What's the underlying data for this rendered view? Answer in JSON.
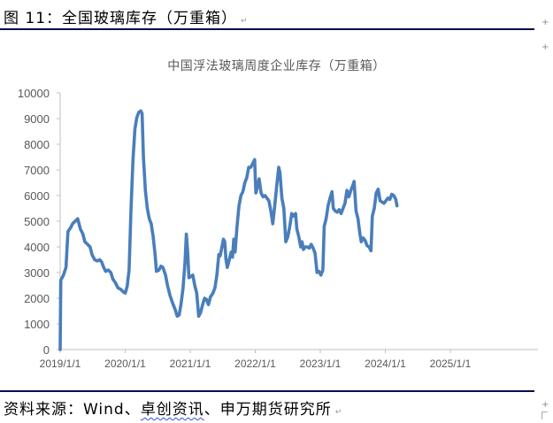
{
  "figure": {
    "title": "图 11：全国玻璃库存（万重箱）",
    "para_mark": "↵",
    "source_prefix": "资料来源：Wind、",
    "source_underlined": "卓创资讯",
    "source_suffix": "、申万期货研究所",
    "colors": {
      "rule": "#0b0b4f",
      "line": "#4a7ebb",
      "axis_text": "#595959",
      "axis": "#bfbfbf"
    }
  },
  "chart_data": {
    "type": "line",
    "title": "中国浮法玻璃周度企业库存（万重箱）",
    "xlabel": "",
    "ylabel": "",
    "ylim": [
      0,
      10000
    ],
    "yticks": [
      "0",
      "1000",
      "2000",
      "3000",
      "4000",
      "5000",
      "6000",
      "7000",
      "8000",
      "9000",
      "10000"
    ],
    "xticks": [
      "2019/1/1",
      "2020/1/1",
      "2021/1/1",
      "2022/1/1",
      "2023/1/1",
      "2024/1/1",
      "2025/1/1"
    ],
    "grid": false,
    "legend": "none",
    "series": [
      {
        "name": "中国浮法玻璃周度企业库存",
        "x_unit": "years since 2019/1/1",
        "points": [
          [
            0.0,
            0
          ],
          [
            0.01,
            2700
          ],
          [
            0.05,
            2900
          ],
          [
            0.09,
            3200
          ],
          [
            0.12,
            4600
          ],
          [
            0.16,
            4750
          ],
          [
            0.19,
            4900
          ],
          [
            0.23,
            5000
          ],
          [
            0.27,
            5100
          ],
          [
            0.31,
            4700
          ],
          [
            0.35,
            4500
          ],
          [
            0.38,
            4200
          ],
          [
            0.42,
            4100
          ],
          [
            0.46,
            4000
          ],
          [
            0.49,
            3700
          ],
          [
            0.53,
            3500
          ],
          [
            0.57,
            3450
          ],
          [
            0.61,
            3500
          ],
          [
            0.64,
            3400
          ],
          [
            0.67,
            3200
          ],
          [
            0.7,
            3050
          ],
          [
            0.74,
            3100
          ],
          [
            0.78,
            3000
          ],
          [
            0.81,
            2750
          ],
          [
            0.85,
            2600
          ],
          [
            0.89,
            2400
          ],
          [
            0.93,
            2350
          ],
          [
            0.97,
            2250
          ],
          [
            1.0,
            2200
          ],
          [
            1.03,
            2450
          ],
          [
            1.06,
            3100
          ],
          [
            1.09,
            5500
          ],
          [
            1.12,
            7400
          ],
          [
            1.15,
            8600
          ],
          [
            1.18,
            9050
          ],
          [
            1.21,
            9250
          ],
          [
            1.24,
            9300
          ],
          [
            1.26,
            9200
          ],
          [
            1.28,
            7500
          ],
          [
            1.31,
            6200
          ],
          [
            1.34,
            5500
          ],
          [
            1.37,
            5100
          ],
          [
            1.4,
            4900
          ],
          [
            1.43,
            4400
          ],
          [
            1.46,
            3700
          ],
          [
            1.48,
            3050
          ],
          [
            1.52,
            3100
          ],
          [
            1.55,
            3250
          ],
          [
            1.58,
            3200
          ],
          [
            1.62,
            2900
          ],
          [
            1.65,
            2500
          ],
          [
            1.69,
            2100
          ],
          [
            1.73,
            1800
          ],
          [
            1.77,
            1550
          ],
          [
            1.8,
            1300
          ],
          [
            1.83,
            1350
          ],
          [
            1.86,
            1800
          ],
          [
            1.89,
            2400
          ],
          [
            1.92,
            3400
          ],
          [
            1.94,
            4500
          ],
          [
            1.96,
            3800
          ],
          [
            1.98,
            2800
          ],
          [
            2.01,
            2850
          ],
          [
            2.04,
            2900
          ],
          [
            2.07,
            2500
          ],
          [
            2.1,
            2200
          ],
          [
            2.13,
            1300
          ],
          [
            2.16,
            1450
          ],
          [
            2.19,
            1750
          ],
          [
            2.22,
            2000
          ],
          [
            2.25,
            1950
          ],
          [
            2.28,
            1750
          ],
          [
            2.31,
            2050
          ],
          [
            2.35,
            2200
          ],
          [
            2.38,
            2400
          ],
          [
            2.41,
            2900
          ],
          [
            2.44,
            3700
          ],
          [
            2.46,
            3650
          ],
          [
            2.48,
            3900
          ],
          [
            2.51,
            4300
          ],
          [
            2.53,
            4200
          ],
          [
            2.55,
            3500
          ],
          [
            2.57,
            3200
          ],
          [
            2.6,
            3500
          ],
          [
            2.63,
            3800
          ],
          [
            2.65,
            3600
          ],
          [
            2.67,
            4300
          ],
          [
            2.69,
            3800
          ],
          [
            2.72,
            4800
          ],
          [
            2.75,
            5600
          ],
          [
            2.78,
            6000
          ],
          [
            2.81,
            6150
          ],
          [
            2.84,
            6500
          ],
          [
            2.87,
            6700
          ],
          [
            2.9,
            7100
          ],
          [
            2.93,
            7100
          ],
          [
            2.96,
            7250
          ],
          [
            2.99,
            7400
          ],
          [
            3.01,
            6100
          ],
          [
            3.03,
            6300
          ],
          [
            3.06,
            6650
          ],
          [
            3.09,
            6100
          ],
          [
            3.12,
            5950
          ],
          [
            3.15,
            6000
          ],
          [
            3.18,
            5900
          ],
          [
            3.21,
            5800
          ],
          [
            3.24,
            5400
          ],
          [
            3.27,
            4900
          ],
          [
            3.3,
            5600
          ],
          [
            3.33,
            6400
          ],
          [
            3.36,
            7100
          ],
          [
            3.38,
            6900
          ],
          [
            3.41,
            5900
          ],
          [
            3.44,
            5500
          ],
          [
            3.47,
            4200
          ],
          [
            3.5,
            4400
          ],
          [
            3.53,
            4800
          ],
          [
            3.56,
            5300
          ],
          [
            3.59,
            5200
          ],
          [
            3.62,
            5300
          ],
          [
            3.64,
            4700
          ],
          [
            3.67,
            4400
          ],
          [
            3.7,
            4000
          ],
          [
            3.72,
            4200
          ],
          [
            3.74,
            3900
          ],
          [
            3.77,
            4000
          ],
          [
            3.8,
            4000
          ],
          [
            3.83,
            3950
          ],
          [
            3.86,
            4100
          ],
          [
            3.89,
            3950
          ],
          [
            3.92,
            3750
          ],
          [
            3.95,
            3000
          ],
          [
            3.98,
            3050
          ],
          [
            4.01,
            2900
          ],
          [
            4.04,
            3100
          ],
          [
            4.06,
            4800
          ],
          [
            4.09,
            5100
          ],
          [
            4.12,
            5600
          ],
          [
            4.15,
            5900
          ],
          [
            4.18,
            6150
          ],
          [
            4.2,
            5500
          ],
          [
            4.23,
            5400
          ],
          [
            4.26,
            5350
          ],
          [
            4.29,
            5450
          ],
          [
            4.32,
            5300
          ],
          [
            4.35,
            5500
          ],
          [
            4.38,
            5700
          ],
          [
            4.41,
            6200
          ],
          [
            4.44,
            5950
          ],
          [
            4.47,
            6200
          ],
          [
            4.5,
            6400
          ],
          [
            4.52,
            6550
          ],
          [
            4.55,
            5400
          ],
          [
            4.58,
            5100
          ],
          [
            4.61,
            4500
          ],
          [
            4.63,
            4200
          ],
          [
            4.66,
            4350
          ],
          [
            4.69,
            4250
          ],
          [
            4.72,
            4050
          ],
          [
            4.75,
            4000
          ],
          [
            4.78,
            3850
          ],
          [
            4.8,
            5200
          ],
          [
            4.83,
            5500
          ],
          [
            4.86,
            6100
          ],
          [
            4.89,
            6250
          ],
          [
            4.92,
            5800
          ],
          [
            4.95,
            5750
          ],
          [
            4.98,
            5700
          ],
          [
            5.01,
            5800
          ],
          [
            5.04,
            5900
          ],
          [
            5.07,
            5850
          ],
          [
            5.1,
            6050
          ],
          [
            5.13,
            6000
          ],
          [
            5.16,
            5850
          ],
          [
            5.18,
            5600
          ]
        ]
      }
    ]
  }
}
